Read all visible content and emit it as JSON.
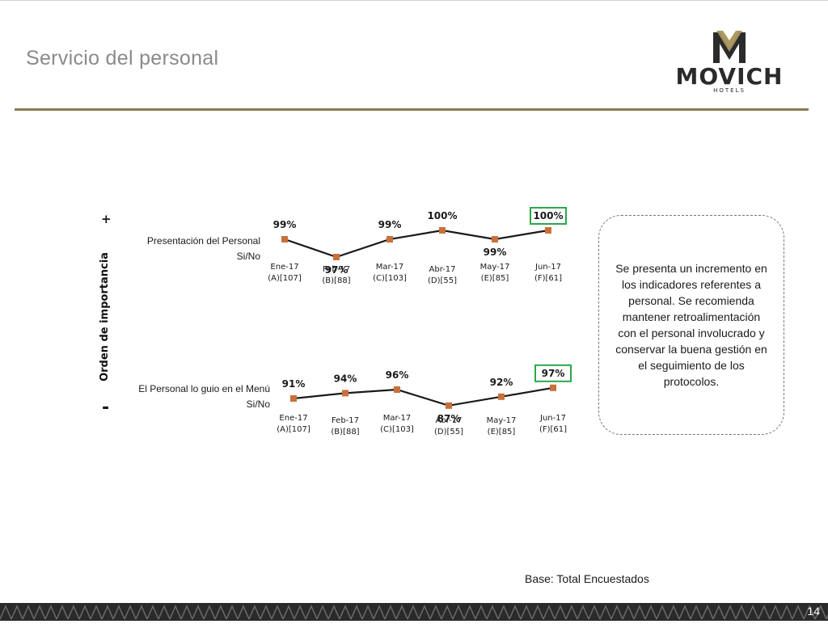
{
  "header": {
    "title": "Servicio del personal",
    "logo": {
      "name": "MOVICH",
      "sub": "HOTELS",
      "gold": "#a8925a",
      "dark": "#2b2b2b"
    }
  },
  "axis": {
    "label": "Orden de importancia",
    "plus": "+",
    "minus": "-"
  },
  "chart_data": [
    {
      "type": "line",
      "title": "Presentación del Personal Si/No",
      "categories": [
        "Ene-17 (A)[107]",
        "Feb-17 (B)[88]",
        "Mar-17 (C)[103]",
        "Abr-17 (D)[55]",
        "May-17 (E)[85]",
        "Jun-17 (F)[61]"
      ],
      "category_lines": [
        [
          "Ene-17",
          "(A)[107]"
        ],
        [
          "Feb-17",
          "(B)[88]"
        ],
        [
          "Mar-17",
          "(C)[103]"
        ],
        [
          "Abr-17",
          "(D)[55]"
        ],
        [
          "May-17",
          "(E)[85]"
        ],
        [
          "Jun-17",
          "(F)[61]"
        ]
      ],
      "values": [
        99,
        97,
        99,
        100,
        99,
        100
      ],
      "value_labels": [
        "99%",
        "97%",
        "99%",
        "100%",
        "99%",
        "100%"
      ],
      "highlight_index": 5,
      "colors": {
        "line": "#1a1a1a",
        "marker": "#c8703a",
        "highlight": "#2aa84a"
      }
    },
    {
      "type": "line",
      "title": "El Personal lo guio en el Menú Si/No",
      "categories": [
        "Ene-17 (A)[107]",
        "Feb-17 (B)[88]",
        "Mar-17 (C)[103]",
        "Abr-17 (D)[55]",
        "May-17 (E)[85]",
        "Jun-17 (F)[61]"
      ],
      "category_lines": [
        [
          "Ene-17",
          "(A)[107]"
        ],
        [
          "Feb-17",
          "(B)[88]"
        ],
        [
          "Mar-17",
          "(C)[103]"
        ],
        [
          "Abr-17",
          "(D)[55]"
        ],
        [
          "May-17",
          "(E)[85]"
        ],
        [
          "Jun-17",
          "(F)[61]"
        ]
      ],
      "values": [
        91,
        94,
        96,
        87,
        92,
        97
      ],
      "value_labels": [
        "91%",
        "94%",
        "96%",
        "87%",
        "92%",
        "97%"
      ],
      "highlight_index": 5,
      "colors": {
        "line": "#1a1a1a",
        "marker": "#c8703a",
        "highlight": "#2aa84a"
      }
    }
  ],
  "note": "Se presenta un incremento en los indicadores referentes a personal. Se recomienda mantener retroalimentación con el personal involucrado y conservar la buena gestión en el seguimiento de los protocolos.",
  "base": "Base: Total Encuestados",
  "page_number": "14"
}
